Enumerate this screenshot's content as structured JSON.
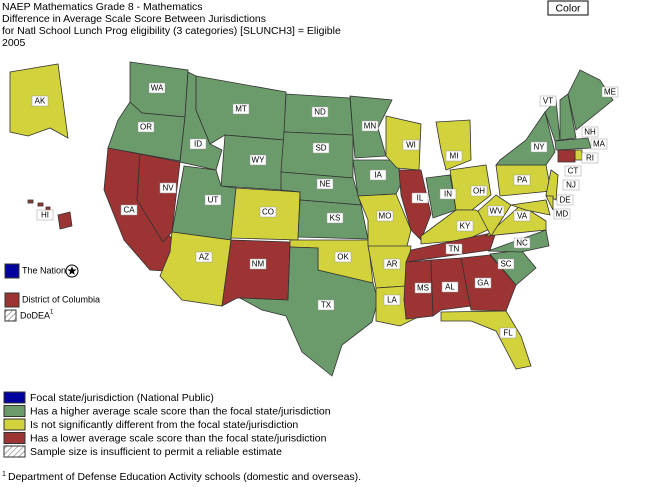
{
  "header": {
    "lines": [
      "NAEP Mathematics Grade 8 - Mathematics",
      "Difference in Average Scale Score Between Jurisdictions",
      "for Natl School Lunch Prog eligibility (3 categories) [SLUNCH3] = Eligible",
      "2005"
    ]
  },
  "color_button": "Color",
  "colors": {
    "focal": "#00009c",
    "higher": "#6b9b6b",
    "same": "#d2d23c",
    "lower": "#9c3434"
  },
  "states": [
    {
      "label": "AK",
      "status": "same"
    },
    {
      "label": "HI",
      "status": "lower"
    },
    {
      "label": "WA",
      "status": "higher"
    },
    {
      "label": "OR",
      "status": "higher"
    },
    {
      "label": "CA",
      "status": "lower"
    },
    {
      "label": "NV",
      "status": "lower"
    },
    {
      "label": "ID",
      "status": "higher"
    },
    {
      "label": "MT",
      "status": "higher"
    },
    {
      "label": "WY",
      "status": "higher"
    },
    {
      "label": "UT",
      "status": "higher"
    },
    {
      "label": "CO",
      "status": "same"
    },
    {
      "label": "AZ",
      "status": "same"
    },
    {
      "label": "NM",
      "status": "lower"
    },
    {
      "label": "ND",
      "status": "higher"
    },
    {
      "label": "SD",
      "status": "higher"
    },
    {
      "label": "NE",
      "status": "higher"
    },
    {
      "label": "KS",
      "status": "higher"
    },
    {
      "label": "OK",
      "status": "same"
    },
    {
      "label": "TX",
      "status": "higher"
    },
    {
      "label": "MN",
      "status": "higher"
    },
    {
      "label": "IA",
      "status": "higher"
    },
    {
      "label": "MO",
      "status": "same"
    },
    {
      "label": "AR",
      "status": "same"
    },
    {
      "label": "LA",
      "status": "same"
    },
    {
      "label": "WI",
      "status": "same"
    },
    {
      "label": "IL",
      "status": "lower"
    },
    {
      "label": "MI",
      "status": "same"
    },
    {
      "label": "IN",
      "status": "higher"
    },
    {
      "label": "OH",
      "status": "same"
    },
    {
      "label": "KY",
      "status": "same"
    },
    {
      "label": "TN",
      "status": "lower"
    },
    {
      "label": "MS",
      "status": "lower"
    },
    {
      "label": "AL",
      "status": "lower"
    },
    {
      "label": "GA",
      "status": "lower"
    },
    {
      "label": "FL",
      "status": "same"
    },
    {
      "label": "SC",
      "status": "higher"
    },
    {
      "label": "NC",
      "status": "higher"
    },
    {
      "label": "VA",
      "status": "same"
    },
    {
      "label": "WV",
      "status": "same"
    },
    {
      "label": "PA",
      "status": "same"
    },
    {
      "label": "NY",
      "status": "higher"
    },
    {
      "label": "VT",
      "status": "higher"
    },
    {
      "label": "NH",
      "status": "higher"
    },
    {
      "label": "ME",
      "status": "higher"
    },
    {
      "label": "MA",
      "status": "higher"
    },
    {
      "label": "RI",
      "status": "same"
    },
    {
      "label": "CT",
      "status": "lower"
    },
    {
      "label": "NJ",
      "status": "same"
    },
    {
      "label": "DE",
      "status": "same"
    },
    {
      "label": "MD",
      "status": "same"
    }
  ],
  "side": {
    "nation": {
      "label": "The Nation",
      "status": "focal"
    },
    "dc": {
      "label": "District of Columbia",
      "status": "lower"
    },
    "dodea": {
      "label": "DoDEA",
      "sup": "1"
    }
  },
  "legend": [
    {
      "label": "Focal state/jurisdiction (National Public)",
      "status": "focal"
    },
    {
      "label": "Has a higher average scale score than the focal state/jurisdiction",
      "status": "higher"
    },
    {
      "label": "Is not significantly different from the focal state/jurisdiction",
      "status": "same"
    },
    {
      "label": "Has a lower average scale score than the focal state/jurisdiction",
      "status": "lower"
    },
    {
      "label": "Sample size is insufficient to permit a reliable estimate",
      "status": "insufficient"
    }
  ],
  "footnote": {
    "mark": "1",
    "text": "Department of Defense Education Activity schools (domestic and overseas)."
  }
}
